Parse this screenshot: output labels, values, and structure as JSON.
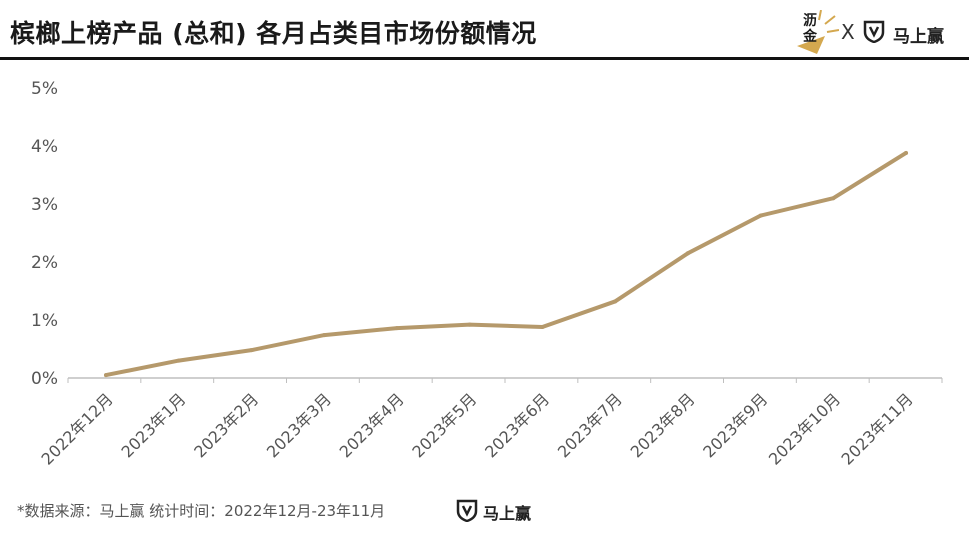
{
  "title": "槟榔上榜产品 (总和) 各月占类目市场份额情况",
  "brand": {
    "left_logo_line1": "沥",
    "left_logo_line2": "金",
    "separator": "X",
    "right_logo_text": "马上赢",
    "colors": {
      "gold": "#D4A84F",
      "dark": "#1A1A1A"
    }
  },
  "footer": {
    "source_text": "*数据来源：马上赢  统计时间：2022年12月-23年11月",
    "logo_text": "马上赢"
  },
  "chart_data": {
    "type": "line",
    "title": "",
    "xlabel": "",
    "ylabel": "",
    "categories": [
      "2022年12月",
      "2023年1月",
      "2023年2月",
      "2023年3月",
      "2023年4月",
      "2023年5月",
      "2023年6月",
      "2023年7月",
      "2023年8月",
      "2023年9月",
      "2023年10月",
      "2023年11月"
    ],
    "series": [
      {
        "values": [
          0.05,
          0.3,
          0.48,
          0.74,
          0.86,
          0.92,
          0.88,
          1.32,
          2.15,
          2.8,
          3.1,
          3.88
        ],
        "color": "#B5996B"
      }
    ],
    "ylim": [
      0,
      5
    ],
    "yticks": [
      "0%",
      "1%",
      "2%",
      "3%",
      "4%",
      "5%"
    ],
    "grid": false,
    "legend": "none"
  }
}
